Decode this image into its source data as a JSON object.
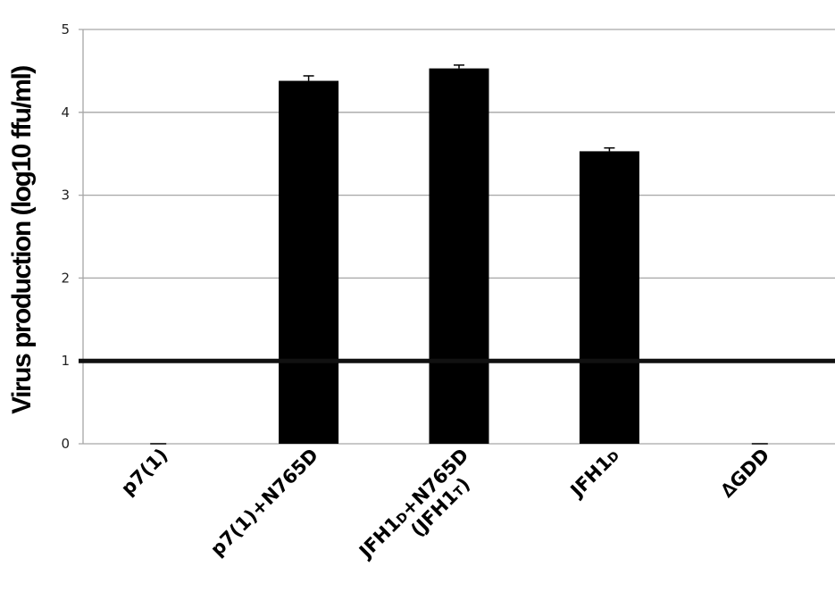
{
  "chart_data": {
    "type": "bar",
    "ylabel": "Virus production (log10 ffu/ml)",
    "ylim": [
      0,
      5
    ],
    "yticks": [
      "0",
      "1",
      "2",
      "3",
      "4",
      "5"
    ],
    "grid": true,
    "reference_line": 1,
    "categories": [
      {
        "lines": [
          [
            {
              "t": "p7(1)"
            }
          ]
        ]
      },
      {
        "lines": [
          [
            {
              "t": "p7(1)+N765D"
            }
          ]
        ]
      },
      {
        "lines": [
          [
            {
              "t": "JFH1"
            },
            {
              "t": "D",
              "sub": true
            },
            {
              "t": "+N765D"
            }
          ],
          [
            {
              "t": "(JFH1"
            },
            {
              "t": "T",
              "sub": true
            },
            {
              "t": ")"
            }
          ]
        ]
      },
      {
        "lines": [
          [
            {
              "t": "JFH1"
            },
            {
              "t": "D",
              "sub": true
            }
          ]
        ]
      },
      {
        "lines": [
          [
            {
              "t": "∆GDD"
            }
          ]
        ]
      }
    ],
    "values": [
      0,
      4.38,
      4.53,
      3.53,
      0
    ],
    "errors": [
      0,
      0.06,
      0.04,
      0.04,
      0
    ],
    "bar_color": "#000000"
  }
}
